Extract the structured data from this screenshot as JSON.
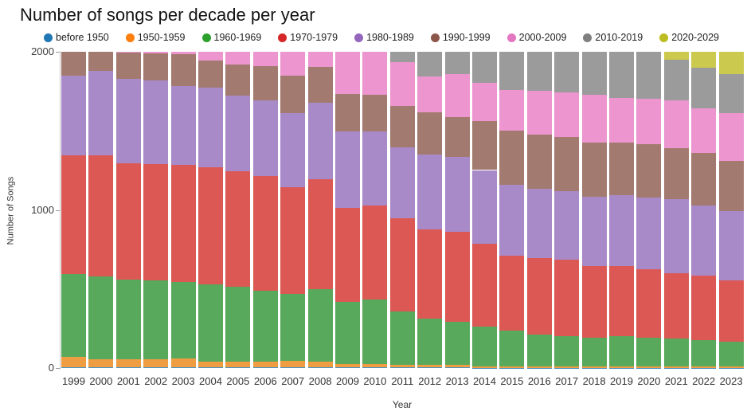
{
  "title": "Number of songs per decade per year",
  "y_axis": {
    "title": "Number of Songs",
    "ticks": [
      0,
      1000,
      2000
    ],
    "max": 2000
  },
  "x_axis": {
    "title": "Year"
  },
  "chart_data": {
    "type": "bar",
    "stacked": true,
    "title": "Number of songs per decade per year",
    "xlabel": "Year",
    "ylabel": "Number of Songs",
    "ylim": [
      0,
      2000
    ],
    "grid": false,
    "legend_position": "top",
    "bar_total": 2000,
    "categories": [
      "1999",
      "2000",
      "2001",
      "2002",
      "2003",
      "2004",
      "2005",
      "2006",
      "2007",
      "2008",
      "2009",
      "2010",
      "2011",
      "2012",
      "2013",
      "2014",
      "2015",
      "2016",
      "2017",
      "2018",
      "2019",
      "2020",
      "2021",
      "2022",
      "2023"
    ],
    "series": [
      {
        "name": "before 1950",
        "legend_color": "#1f77b4",
        "bar_color": "#4c92c3",
        "values": [
          5,
          5,
          5,
          5,
          5,
          5,
          5,
          5,
          5,
          5,
          5,
          5,
          3,
          3,
          3,
          2,
          2,
          2,
          2,
          2,
          2,
          2,
          2,
          2,
          2
        ]
      },
      {
        "name": "1950-1959",
        "legend_color": "#ff7f0e",
        "bar_color": "#ee9d42",
        "values": [
          65,
          50,
          50,
          50,
          55,
          35,
          35,
          35,
          40,
          35,
          20,
          20,
          15,
          15,
          15,
          8,
          8,
          8,
          7,
          8,
          7,
          8,
          8,
          7,
          8
        ]
      },
      {
        "name": "1960-1969",
        "legend_color": "#2ca02c",
        "bar_color": "#58a95c",
        "values": [
          525,
          525,
          505,
          500,
          485,
          490,
          475,
          450,
          425,
          460,
          395,
          410,
          342,
          292,
          275,
          253,
          225,
          200,
          193,
          183,
          193,
          183,
          175,
          168,
          158
        ]
      },
      {
        "name": "1970-1979",
        "legend_color": "#d62728",
        "bar_color": "#db5854",
        "values": [
          750,
          765,
          735,
          735,
          740,
          740,
          730,
          725,
          675,
          695,
          595,
          595,
          585,
          565,
          567,
          522,
          475,
          483,
          483,
          450,
          441,
          434,
          417,
          408,
          384
        ]
      },
      {
        "name": "1980-1989",
        "legend_color": "#9467bd",
        "bar_color": "#a98ac9",
        "values": [
          505,
          535,
          535,
          530,
          500,
          505,
          480,
          480,
          465,
          485,
          480,
          465,
          450,
          475,
          475,
          467,
          450,
          442,
          433,
          442,
          450,
          450,
          466,
          442,
          441
        ]
      },
      {
        "name": "1990-1999",
        "legend_color": "#8c564b",
        "bar_color": "#a37a6f",
        "values": [
          150,
          120,
          165,
          170,
          200,
          170,
          195,
          215,
          240,
          225,
          240,
          235,
          265,
          268,
          250,
          308,
          341,
          341,
          342,
          342,
          334,
          341,
          325,
          333,
          317
        ]
      },
      {
        "name": "2000-2009",
        "legend_color": "#e377c2",
        "bar_color": "#ec95cf",
        "values": [
          0,
          0,
          5,
          10,
          15,
          55,
          80,
          90,
          150,
          95,
          265,
          270,
          275,
          225,
          275,
          242,
          259,
          275,
          283,
          300,
          283,
          283,
          300,
          283,
          300
        ]
      },
      {
        "name": "2010-2019",
        "legend_color": "#7f7f7f",
        "bar_color": "#9b9b9b",
        "values": [
          0,
          0,
          0,
          0,
          0,
          0,
          0,
          0,
          0,
          0,
          0,
          0,
          65,
          157,
          140,
          198,
          240,
          249,
          257,
          273,
          290,
          299,
          257,
          257,
          250
        ]
      },
      {
        "name": "2020-2029",
        "legend_color": "#bcbd22",
        "bar_color": "#cbca4f",
        "values": [
          0,
          0,
          0,
          0,
          0,
          0,
          0,
          0,
          0,
          0,
          0,
          0,
          0,
          0,
          0,
          0,
          0,
          0,
          0,
          0,
          0,
          0,
          50,
          100,
          140
        ]
      }
    ]
  }
}
